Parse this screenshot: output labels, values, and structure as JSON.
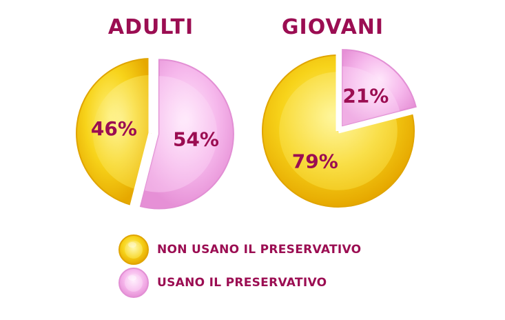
{
  "chart_data": [
    {
      "type": "pie",
      "title": "ADULTI",
      "slices": [
        {
          "name": "NON USANO IL PRESERVATIVO",
          "value": 46,
          "label": "46%",
          "color": "#f2c40a"
        },
        {
          "name": "USANO IL PRESERVATIVO",
          "value": 54,
          "label": "54%",
          "color": "#f3a8e6"
        }
      ]
    },
    {
      "type": "pie",
      "title": "GIOVANI",
      "slices": [
        {
          "name": "NON USANO IL PRESERVATIVO",
          "value": 79,
          "label": "79%",
          "color": "#f2c40a"
        },
        {
          "name": "USANO IL PRESERVATIVO",
          "value": 21,
          "label": "21%",
          "color": "#f3a8e6"
        }
      ]
    }
  ],
  "legend": {
    "items": [
      {
        "label": "NON USANO IL PRESERVATIVO",
        "color": "#f2c40a"
      },
      {
        "label": "USANO IL PRESERVATIVO",
        "color": "#f3a8e6"
      }
    ]
  },
  "colors": {
    "text": "#9b0d52",
    "yellow": "#f2c40a",
    "pink": "#f3a8e6"
  }
}
